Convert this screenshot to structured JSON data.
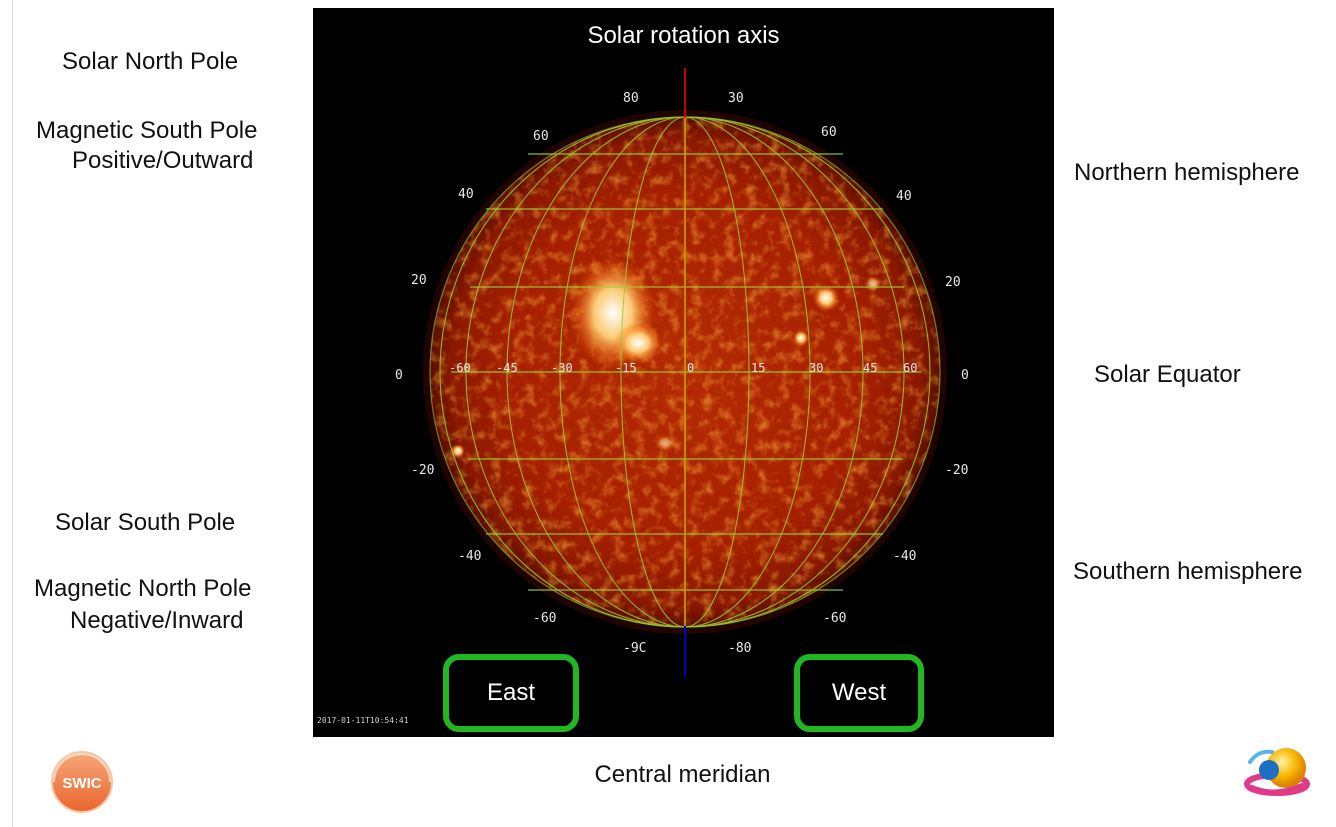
{
  "left_labels": {
    "solar_north_pole": "Solar North Pole",
    "magnetic_south_pole": "Magnetic South Pole",
    "positive_outward": "Positive/Outward",
    "solar_south_pole": "Solar South Pole",
    "magnetic_north_pole": "Magnetic North Pole",
    "negative_inward": "Negative/Inward"
  },
  "right_labels": {
    "northern_hemisphere": "Northern hemisphere",
    "solar_equator": "Solar Equator",
    "southern_hemisphere": "Southern hemisphere"
  },
  "image": {
    "title": "Solar rotation axis",
    "timestamp": "2017-01-11T10:54:41",
    "latitude_labels": {
      "top_left": "80",
      "top_right": "30",
      "n60_left": "60",
      "n60_right": "60",
      "n40_left": "40",
      "n40_right": "40",
      "n20_left": "20",
      "n20_right": "20",
      "eq_left": "0",
      "eq_right": "0",
      "s20_left": "-20",
      "s20_right": "-20",
      "s40_left": "-40",
      "s40_right": "-40",
      "s60_left": "-60",
      "s60_right": "-60",
      "bottom_left": "-9C",
      "bottom_right": "-80"
    },
    "longitude_labels": [
      "-60",
      "-45",
      "-30",
      "-15",
      "0",
      "15",
      "30",
      "45",
      "60"
    ],
    "colors": {
      "background": "#000000",
      "sun": "#b32400",
      "grid": "#9acd32",
      "axis_north": "#cc0000",
      "axis_south": "#0000cc"
    }
  },
  "directions": {
    "east": "East",
    "west": "West",
    "box_color": "#22b622"
  },
  "footer": {
    "central_meridian": "Central meridian"
  },
  "logos": {
    "left_logo_text": "SWIC"
  }
}
